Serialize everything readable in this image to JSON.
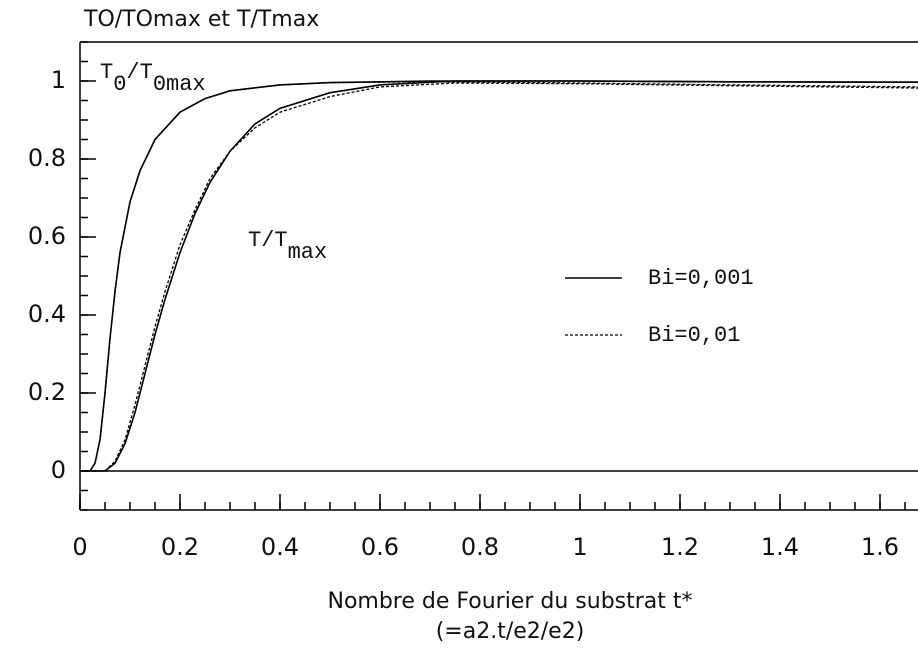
{
  "chart_data": {
    "type": "line",
    "y_axis_label": "TO/TOmax et T/Tmax",
    "x_axis_label": [
      "Nombre de Fourier du substrat t*",
      "(=a2.t/e2/e2)"
    ],
    "annotations": [
      {
        "parts": [
          "T",
          "0",
          "/T",
          "0max"
        ]
      },
      {
        "parts": [
          "T/T",
          "max"
        ]
      }
    ],
    "xlim": [
      0,
      1.676
    ],
    "ylim": [
      -0.1,
      1.1
    ],
    "xticks": [
      0,
      0.2,
      0.4,
      0.6,
      0.8,
      1,
      1.2,
      1.4,
      1.6
    ],
    "yticks": [
      0,
      0.2,
      0.4,
      0.6,
      0.8,
      1
    ],
    "x_minor_step": 0.05,
    "y_minor_step": 0.05,
    "series": [
      {
        "name": "Bi=0,001",
        "color": "#000000",
        "dash": false,
        "curves": [
          {
            "x": [
              0,
              0.02,
              0.03,
              0.04,
              0.05,
              0.06,
              0.07,
              0.08,
              0.1,
              0.12,
              0.15,
              0.2,
              0.25,
              0.3,
              0.4,
              0.5,
              0.7,
              1,
              1.3,
              1.676
            ],
            "values": [
              0,
              0,
              0.02,
              0.08,
              0.2,
              0.34,
              0.46,
              0.56,
              0.69,
              0.77,
              0.85,
              0.92,
              0.955,
              0.975,
              0.99,
              0.996,
              1,
              1,
              0.998,
              0.997
            ]
          },
          {
            "x": [
              0,
              0.05,
              0.07,
              0.09,
              0.11,
              0.13,
              0.15,
              0.17,
              0.2,
              0.23,
              0.26,
              0.3,
              0.35,
              0.4,
              0.5,
              0.6,
              0.75,
              1,
              1.3,
              1.676
            ],
            "values": [
              0,
              0,
              0.02,
              0.07,
              0.15,
              0.25,
              0.35,
              0.44,
              0.56,
              0.66,
              0.74,
              0.82,
              0.89,
              0.93,
              0.97,
              0.99,
              1,
              1,
              0.998,
              0.997
            ]
          }
        ]
      },
      {
        "name": "Bi=0,01",
        "color": "#000000",
        "dash": true,
        "curves": [
          {
            "x": [
              0,
              0.02,
              0.03,
              0.04,
              0.05,
              0.06,
              0.07,
              0.08,
              0.1,
              0.12,
              0.15,
              0.2,
              0.25,
              0.3,
              0.4,
              0.5,
              0.7,
              1,
              1.3,
              1.676
            ],
            "values": [
              0,
              0,
              0.02,
              0.08,
              0.2,
              0.34,
              0.46,
              0.56,
              0.69,
              0.77,
              0.85,
              0.92,
              0.955,
              0.975,
              0.99,
              0.996,
              0.998,
              0.995,
              0.99,
              0.985
            ]
          },
          {
            "x": [
              0,
              0.05,
              0.07,
              0.09,
              0.11,
              0.13,
              0.15,
              0.17,
              0.2,
              0.23,
              0.26,
              0.3,
              0.35,
              0.4,
              0.5,
              0.6,
              0.75,
              1,
              1.3,
              1.676
            ],
            "values": [
              0,
              0,
              0.025,
              0.08,
              0.17,
              0.27,
              0.37,
              0.46,
              0.58,
              0.67,
              0.75,
              0.82,
              0.88,
              0.92,
              0.96,
              0.985,
              0.995,
              0.993,
              0.988,
              0.982
            ]
          }
        ]
      }
    ]
  }
}
